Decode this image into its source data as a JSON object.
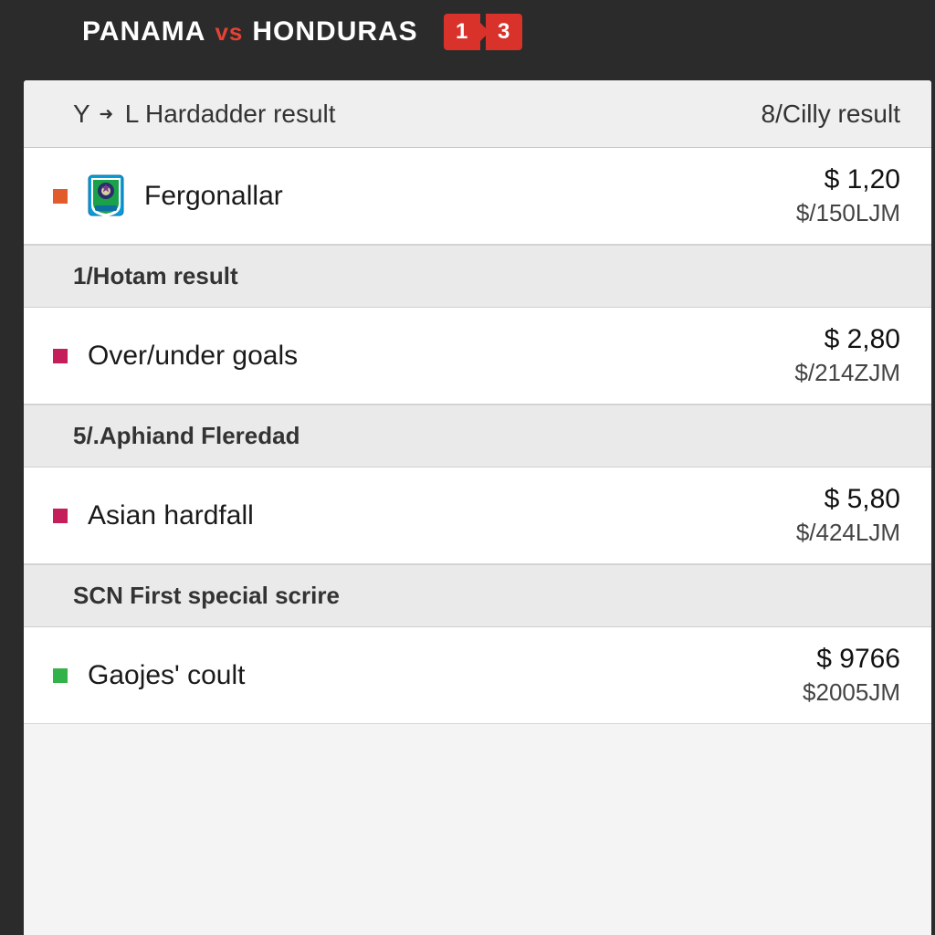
{
  "header": {
    "team_a": "PANAMA",
    "vs": "vs",
    "team_b": "HONDURAS",
    "score_a": "1",
    "score_b": "3"
  },
  "colors": {
    "accent_red": "#d8322b",
    "marker_orange": "#e25b2a",
    "marker_magenta": "#c41e5b",
    "marker_green": "#34b24a",
    "bg_dark": "#2b2b2b",
    "row_bg": "#ffffff",
    "section_bg": "#eaeaea",
    "header_bg": "#efefef",
    "divider": "#d6d6d6"
  },
  "columns": {
    "left_label_prefix": "Y",
    "left_label": "L Hardadder result",
    "right_label": "8/Cilly result"
  },
  "sections": [
    {
      "rows": [
        {
          "marker_color": "#e25b2a",
          "has_crest": true,
          "label": "Fergonallar",
          "value_primary": "$ 1,20",
          "value_secondary": "$/150LJM"
        }
      ]
    },
    {
      "title": "1/Hotam result",
      "rows": [
        {
          "marker_color": "#c41e5b",
          "has_crest": false,
          "label": "Over/under goals",
          "value_primary": "$ 2,80",
          "value_secondary": "$/214ZJM"
        }
      ]
    },
    {
      "title": "5/.Aphiand Fleredad",
      "rows": [
        {
          "marker_color": "#c41e5b",
          "has_crest": false,
          "label": "Asian hardfall",
          "value_primary": "$ 5,80",
          "value_secondary": "$/424LJM"
        }
      ]
    },
    {
      "title": "SCN First special scrire",
      "rows": [
        {
          "marker_color": "#34b24a",
          "has_crest": false,
          "label": "Gaojes' coult",
          "value_primary": "$ 9766",
          "value_secondary": "$2005JM"
        }
      ]
    }
  ]
}
